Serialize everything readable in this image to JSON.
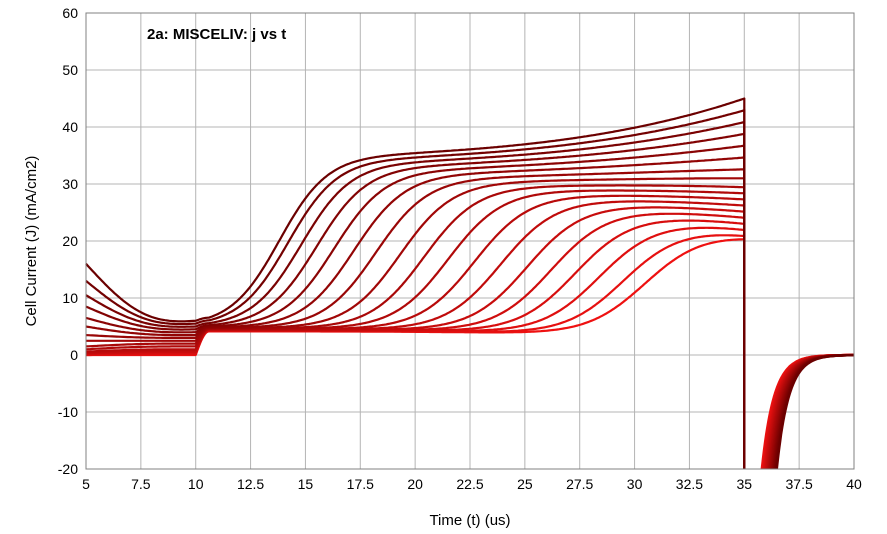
{
  "chart_data": {
    "type": "line",
    "title": "2a: MISCELIV: j vs t",
    "xlabel": "Time (t) (us)",
    "ylabel": "Cell Current (J) (mA/cm2)",
    "xlim": [
      5,
      40
    ],
    "ylim": [
      -20,
      60
    ],
    "xticks": [
      5,
      7.5,
      10,
      12.5,
      15,
      17.5,
      20,
      22.5,
      25,
      27.5,
      30,
      32.5,
      35,
      37.5,
      40
    ],
    "xtick_labels": [
      "5",
      "7.5",
      "10",
      "12.5",
      "15",
      "17.5",
      "20",
      "22.5",
      "25",
      "27.5",
      "30",
      "32.5",
      "35",
      "37.5",
      "40"
    ],
    "yticks": [
      -20,
      -10,
      0,
      10,
      20,
      30,
      40,
      50,
      60
    ],
    "ytick_labels": [
      "-20",
      "-10",
      "0",
      "10",
      "20",
      "30",
      "40",
      "50",
      "60"
    ],
    "grid": true,
    "legend": "none",
    "colors": {
      "darkest": "#6b0000",
      "brightest": "#ee1111",
      "grid": "#b4b4b4",
      "plot_border": "#808080"
    },
    "series": [
      {
        "j_initial": 16,
        "j_at_10us": 6,
        "j_at_35us": 45,
        "transition_t": 13.8
      },
      {
        "j_initial": 13,
        "j_at_10us": 5.5,
        "j_at_35us": 43,
        "transition_t": 14.2
      },
      {
        "j_initial": 10.5,
        "j_at_10us": 5,
        "j_at_35us": 41,
        "transition_t": 14.8
      },
      {
        "j_initial": 8.5,
        "j_at_10us": 4.5,
        "j_at_35us": 39,
        "transition_t": 15.5
      },
      {
        "j_initial": 6.5,
        "j_at_10us": 4,
        "j_at_35us": 37,
        "transition_t": 16.3
      },
      {
        "j_initial": 5,
        "j_at_10us": 3.5,
        "j_at_35us": 35,
        "transition_t": 17.2
      },
      {
        "j_initial": 3.5,
        "j_at_10us": 3,
        "j_at_35us": 33,
        "transition_t": 18.2
      },
      {
        "j_initial": 2.5,
        "j_at_10us": 2.5,
        "j_at_35us": 31.5,
        "transition_t": 19.3
      },
      {
        "j_initial": 1.5,
        "j_at_10us": 2,
        "j_at_35us": 30,
        "transition_t": 20.4
      },
      {
        "j_initial": 1,
        "j_at_10us": 1.5,
        "j_at_35us": 29,
        "transition_t": 21.5
      },
      {
        "j_initial": 0.6,
        "j_at_10us": 1,
        "j_at_35us": 28,
        "transition_t": 22.7
      },
      {
        "j_initial": 0.4,
        "j_at_10us": 0.8,
        "j_at_35us": 27,
        "transition_t": 23.9
      },
      {
        "j_initial": 0.3,
        "j_at_10us": 0.6,
        "j_at_35us": 26,
        "transition_t": 25.1
      },
      {
        "j_initial": 0.2,
        "j_at_10us": 0.5,
        "j_at_35us": 25,
        "transition_t": 26.2
      },
      {
        "j_initial": 0.1,
        "j_at_10us": 0.3,
        "j_at_35us": 24,
        "transition_t": 27.3
      },
      {
        "j_initial": 0.1,
        "j_at_10us": 0.2,
        "j_at_35us": 23,
        "transition_t": 28.4
      },
      {
        "j_initial": 0,
        "j_at_10us": 0.1,
        "j_at_35us": 22,
        "transition_t": 29.5
      },
      {
        "j_initial": 0,
        "j_at_10us": 0,
        "j_at_35us": 21.5,
        "transition_t": 30.5
      }
    ],
    "recovery_after_35us": {
      "drop_to": -20,
      "return_start_t": 35.8,
      "return_end_t": 40,
      "final_j": 0
    }
  }
}
